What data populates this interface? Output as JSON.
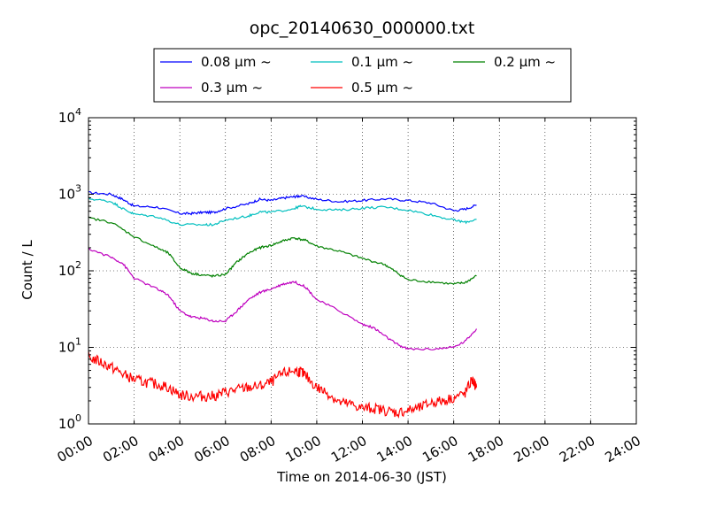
{
  "chart_data": {
    "type": "line",
    "title": "opc_20140630_000000.txt",
    "xlabel": "Time on 2014-06-30 (JST)",
    "ylabel": "Count / L",
    "y_scale": "log",
    "ylim": [
      1,
      10000
    ],
    "xlim": [
      "00:00",
      "24:00"
    ],
    "grid": true,
    "legend_position": "top-center",
    "x_ticks": [
      "00:00",
      "02:00",
      "04:00",
      "06:00",
      "08:00",
      "10:00",
      "12:00",
      "14:00",
      "16:00",
      "18:00",
      "20:00",
      "22:00",
      "24:00"
    ],
    "y_ticks": [
      {
        "base": "10",
        "exp": "0"
      },
      {
        "base": "10",
        "exp": "1"
      },
      {
        "base": "10",
        "exp": "2"
      },
      {
        "base": "10",
        "exp": "3"
      },
      {
        "base": "10",
        "exp": "4"
      }
    ],
    "series": [
      {
        "name": "0.08 μm ~",
        "color": "#0000ff",
        "points": [
          [
            0,
            1050
          ],
          [
            1,
            1000
          ],
          [
            1.5,
            860
          ],
          [
            2,
            700
          ],
          [
            3,
            680
          ],
          [
            4,
            560
          ],
          [
            4.5,
            560
          ],
          [
            5,
            580
          ],
          [
            5.5,
            580
          ],
          [
            6,
            650
          ],
          [
            7,
            750
          ],
          [
            7.5,
            860
          ],
          [
            8,
            830
          ],
          [
            8.5,
            890
          ],
          [
            9,
            930
          ],
          [
            9.3,
            950
          ],
          [
            10,
            860
          ],
          [
            11,
            800
          ],
          [
            12,
            830
          ],
          [
            13,
            870
          ],
          [
            14,
            830
          ],
          [
            15,
            770
          ],
          [
            16,
            610
          ],
          [
            16.5,
            640
          ],
          [
            17,
            720
          ]
        ]
      },
      {
        "name": "0.1 μm ~",
        "color": "#00bfbf",
        "points": [
          [
            0,
            880
          ],
          [
            1,
            800
          ],
          [
            1.5,
            650
          ],
          [
            2,
            550
          ],
          [
            3,
            510
          ],
          [
            4,
            400
          ],
          [
            5,
            400
          ],
          [
            5.5,
            400
          ],
          [
            6,
            460
          ],
          [
            7,
            520
          ],
          [
            7.5,
            590
          ],
          [
            8,
            580
          ],
          [
            9,
            650
          ],
          [
            9.3,
            700
          ],
          [
            10,
            640
          ],
          [
            11,
            620
          ],
          [
            12,
            660
          ],
          [
            13,
            680
          ],
          [
            14,
            620
          ],
          [
            15,
            540
          ],
          [
            16,
            460
          ],
          [
            16.5,
            430
          ],
          [
            17,
            470
          ]
        ]
      },
      {
        "name": "0.2 μm ~",
        "color": "#008000",
        "points": [
          [
            0,
            490
          ],
          [
            1,
            430
          ],
          [
            2,
            280
          ],
          [
            3,
            200
          ],
          [
            3.5,
            170
          ],
          [
            4,
            110
          ],
          [
            4.5,
            93
          ],
          [
            5,
            88
          ],
          [
            5.5,
            85
          ],
          [
            6,
            90
          ],
          [
            6.5,
            130
          ],
          [
            7,
            170
          ],
          [
            7.5,
            200
          ],
          [
            8,
            215
          ],
          [
            8.5,
            245
          ],
          [
            9,
            270
          ],
          [
            9.5,
            250
          ],
          [
            10,
            210
          ],
          [
            11,
            180
          ],
          [
            12,
            145
          ],
          [
            13,
            120
          ],
          [
            13.5,
            95
          ],
          [
            14,
            76
          ],
          [
            15,
            72
          ],
          [
            16,
            67
          ],
          [
            16.5,
            70
          ],
          [
            17,
            86
          ]
        ]
      },
      {
        "name": "0.3 μm ~",
        "color": "#bf00bf",
        "points": [
          [
            0,
            195
          ],
          [
            1,
            150
          ],
          [
            1.5,
            125
          ],
          [
            2,
            80
          ],
          [
            3,
            58
          ],
          [
            3.5,
            48
          ],
          [
            4,
            30
          ],
          [
            4.5,
            25
          ],
          [
            5,
            24
          ],
          [
            5.5,
            22
          ],
          [
            6,
            22
          ],
          [
            6.5,
            30
          ],
          [
            7,
            42
          ],
          [
            7.5,
            52
          ],
          [
            8,
            58
          ],
          [
            8.5,
            67
          ],
          [
            9,
            72
          ],
          [
            9.5,
            62
          ],
          [
            10,
            42
          ],
          [
            11,
            30
          ],
          [
            12,
            20
          ],
          [
            12.5,
            18
          ],
          [
            13,
            14
          ],
          [
            13.5,
            11
          ],
          [
            14,
            9.5
          ],
          [
            15,
            9.5
          ],
          [
            16,
            10
          ],
          [
            16.5,
            12
          ],
          [
            17,
            17.5
          ]
        ]
      },
      {
        "name": "0.5 μm ~",
        "color": "#ff0000",
        "points": [
          [
            0,
            7.5
          ],
          [
            0.5,
            6.5
          ],
          [
            1,
            5.5
          ],
          [
            1.5,
            4.5
          ],
          [
            2,
            3.8
          ],
          [
            2.5,
            3.5
          ],
          [
            3,
            3.3
          ],
          [
            3.5,
            3.0
          ],
          [
            4,
            2.4
          ],
          [
            4.5,
            2.3
          ],
          [
            5,
            2.3
          ],
          [
            5.5,
            2.3
          ],
          [
            6,
            2.6
          ],
          [
            6.5,
            2.8
          ],
          [
            7,
            3.0
          ],
          [
            7.5,
            3.1
          ],
          [
            8,
            3.5
          ],
          [
            8.5,
            4.5
          ],
          [
            9,
            5.0
          ],
          [
            9.3,
            4.8
          ],
          [
            9.5,
            4.3
          ],
          [
            10,
            3.0
          ],
          [
            10.5,
            2.5
          ],
          [
            11,
            1.9
          ],
          [
            11.5,
            1.8
          ],
          [
            12,
            1.6
          ],
          [
            12.5,
            1.6
          ],
          [
            13,
            1.5
          ],
          [
            13.5,
            1.4
          ],
          [
            14,
            1.5
          ],
          [
            14.5,
            1.6
          ],
          [
            15,
            1.9
          ],
          [
            15.5,
            2.0
          ],
          [
            16,
            2.2
          ],
          [
            16.5,
            2.5
          ],
          [
            16.8,
            3.8
          ],
          [
            17,
            3.0
          ]
        ]
      }
    ]
  }
}
